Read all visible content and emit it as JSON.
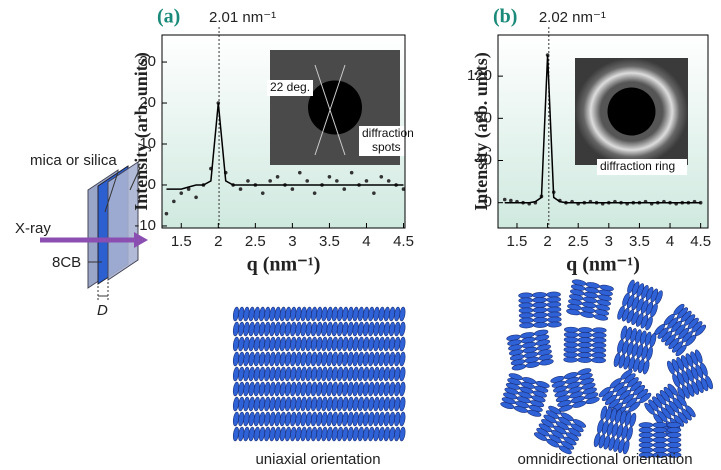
{
  "chart_data": [
    {
      "type": "scatter",
      "label": "(a)",
      "x": [
        1.3,
        1.4,
        1.5,
        1.6,
        1.7,
        1.8,
        1.9,
        2.0,
        2.1,
        2.2,
        2.3,
        2.4,
        2.5,
        2.6,
        2.7,
        2.8,
        2.9,
        3.0,
        3.1,
        3.2,
        3.3,
        3.4,
        3.5,
        3.6,
        3.7,
        3.8,
        3.9,
        4.0,
        4.1,
        4.2,
        4.3,
        4.4,
        4.5
      ],
      "series": [
        {
          "mode": "markers",
          "color": "#333333",
          "values": [
            -7,
            -4,
            -2,
            -1,
            -3,
            0,
            4,
            20,
            3,
            0,
            -1,
            1,
            0,
            -2,
            1,
            2,
            0,
            -1,
            3,
            1,
            -2,
            0,
            2,
            1,
            -1,
            3,
            0,
            1,
            -2,
            2,
            1,
            0,
            -1
          ]
        },
        {
          "mode": "line",
          "color": "#000000",
          "values": [
            -1,
            -1,
            -1,
            -0.5,
            0,
            0,
            1,
            20,
            1,
            0,
            0,
            0,
            0,
            0,
            0,
            0,
            0,
            0,
            0,
            0,
            0,
            0,
            0,
            0,
            0,
            0,
            0,
            0,
            0,
            0,
            0,
            0,
            0
          ]
        }
      ],
      "xlim": [
        1.24,
        4.52
      ],
      "ylim": [
        -10.5,
        36.6
      ],
      "xticks": [
        1.5,
        2,
        2.5,
        3,
        3.5,
        4,
        4.5
      ],
      "yticks": [
        -10,
        0,
        10,
        20,
        30
      ],
      "xlabel": "q (nm⁻¹)",
      "ylabel": "Intensity (arb. units)",
      "annotation": {
        "x": 2.01,
        "label": "2.01 nm⁻¹"
      },
      "inset_labels": [
        "22 deg.",
        "diffraction",
        "spots"
      ],
      "caption": "uniaxial orientation"
    },
    {
      "type": "scatter",
      "label": "(b)",
      "x": [
        1.3,
        1.4,
        1.5,
        1.6,
        1.7,
        1.8,
        1.9,
        2.0,
        2.1,
        2.2,
        2.3,
        2.4,
        2.5,
        2.6,
        2.7,
        2.8,
        2.9,
        3.0,
        3.1,
        3.2,
        3.3,
        3.4,
        3.5,
        3.6,
        3.7,
        3.8,
        3.9,
        4.0,
        4.1,
        4.2,
        4.3,
        4.4,
        4.5
      ],
      "series": [
        {
          "mode": "markers",
          "color": "#333333",
          "values": [
            3,
            2,
            1,
            0,
            -1,
            0,
            6,
            140,
            10,
            2,
            0,
            1,
            -1,
            0,
            1,
            0,
            -1,
            0,
            1,
            0,
            -1,
            0,
            0,
            1,
            -1,
            0,
            1,
            0,
            -1,
            0,
            0,
            1,
            0
          ]
        },
        {
          "mode": "line",
          "color": "#000000",
          "values": [
            0,
            0,
            0,
            0,
            0,
            1,
            5,
            140,
            5,
            1,
            0,
            0,
            0,
            0,
            0,
            0,
            0,
            0,
            0,
            0,
            0,
            0,
            0,
            0,
            0,
            0,
            0,
            0,
            0,
            0,
            0,
            0,
            0
          ]
        }
      ],
      "xlim": [
        1.19,
        4.62
      ],
      "ylim": [
        -24,
        159
      ],
      "xticks": [
        1.5,
        2,
        2.5,
        3,
        3.5,
        4,
        4.5
      ],
      "yticks": [
        0,
        40,
        80,
        120
      ],
      "xlabel": "q (nm⁻¹)",
      "ylabel": "Intensity (arb. units)",
      "annotation": {
        "x": 2.02,
        "label": "2.02 nm⁻¹"
      },
      "inset_labels": [
        "diffraction ring"
      ],
      "caption": "omnidirectional orientation"
    }
  ],
  "diagram": {
    "labels": [
      "mica or silica",
      "X-ray",
      "8CB",
      "D"
    ]
  }
}
